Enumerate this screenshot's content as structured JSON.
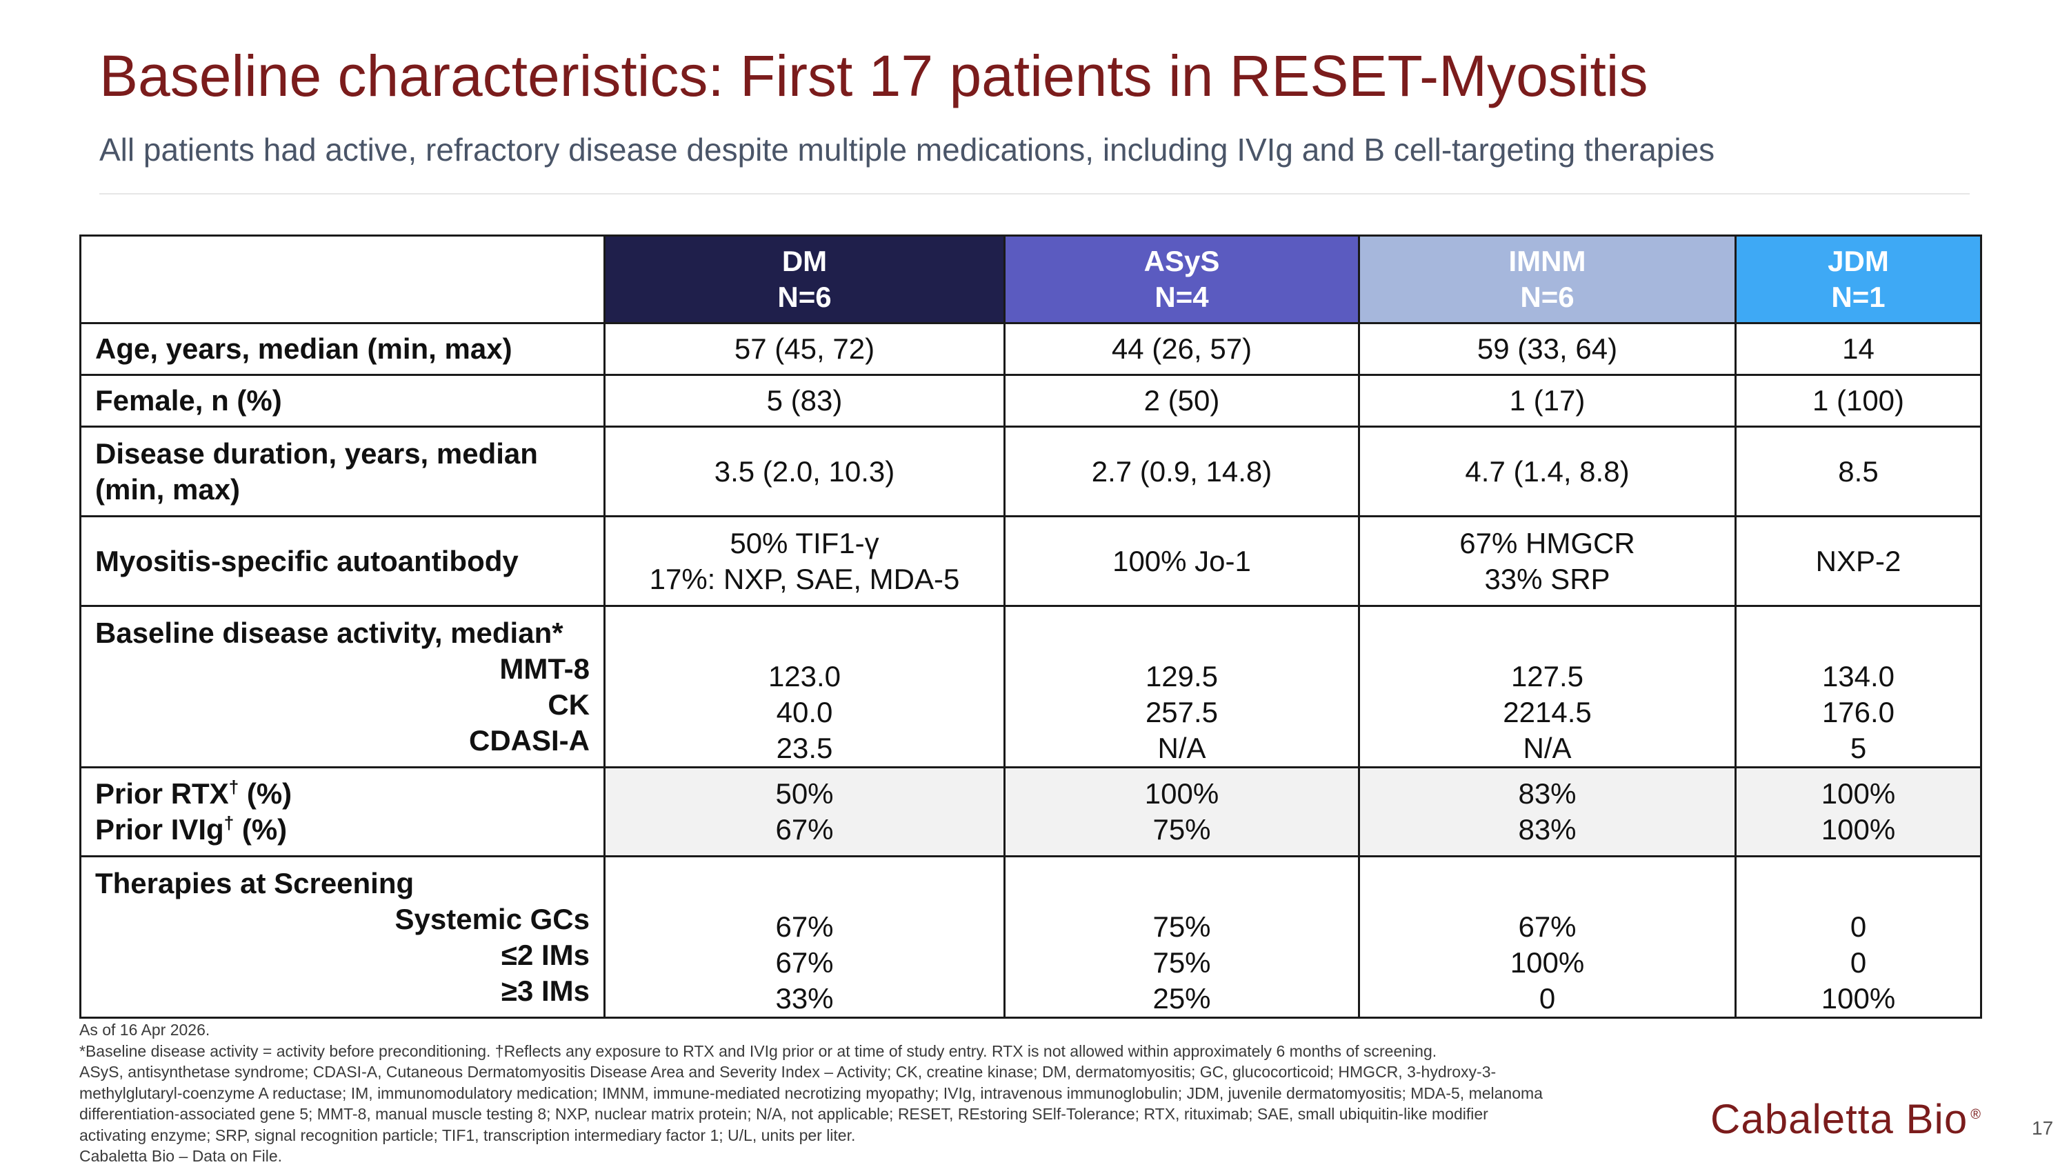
{
  "slide": {
    "title": "Baseline characteristics: First 17 patients in RESET-Myositis",
    "subtitle": "All patients had active, refractory disease despite multiple medications, including IVIg and B cell-targeting therapies",
    "page_number": "17",
    "logo_text": "Cabaletta Bio",
    "logo_mark": "®"
  },
  "colors": {
    "title": "#7b1c1c",
    "dm": "#1f1f4b",
    "asys": "#5b5bc0",
    "imnm": "#a6b7dc",
    "jdm": "#3ea9f5"
  },
  "table": {
    "columns": [
      {
        "name": "DM",
        "n": "N=6"
      },
      {
        "name": "ASyS",
        "n": "N=4"
      },
      {
        "name": "IMNM",
        "n": "N=6"
      },
      {
        "name": "JDM",
        "n": "N=1"
      }
    ],
    "age": {
      "label": "Age, years, median (min, max)",
      "values": [
        "57 (45, 72)",
        "44 (26, 57)",
        "59 (33, 64)",
        "14"
      ]
    },
    "female": {
      "label": "Female, n (%)",
      "values": [
        "5 (83)",
        "2 (50)",
        "1 (17)",
        "1 (100)"
      ]
    },
    "duration": {
      "label_line1": "Disease duration, years, median",
      "label_line2": "(min, max)",
      "values": [
        "3.5 (2.0, 10.3)",
        "2.7 (0.9, 14.8)",
        "4.7 (1.4, 8.8)",
        "8.5"
      ]
    },
    "autoantibody": {
      "label": "Myositis-specific autoantibody",
      "values": [
        {
          "line1": "50% TIF1-γ",
          "line2": "17%: NXP, SAE, MDA-5"
        },
        {
          "line1": "100% Jo-1",
          "line2": ""
        },
        {
          "line1": "67% HMGCR",
          "line2": "33% SRP"
        },
        {
          "line1": "NXP-2",
          "line2": ""
        }
      ]
    },
    "activity": {
      "label": "Baseline disease activity, median*",
      "sub_labels": [
        "MMT-8",
        "CK",
        "CDASI-A"
      ],
      "values": [
        [
          "123.0",
          "40.0",
          "23.5"
        ],
        [
          "129.5",
          "257.5",
          "N/A"
        ],
        [
          "127.5",
          "2214.5",
          "N/A"
        ],
        [
          "134.0",
          "176.0",
          "5"
        ]
      ]
    },
    "prior": {
      "rtx_label": "Prior RTX",
      "ivig_label": "Prior IVIg",
      "dagger": "†",
      "pct_suffix": " (%)",
      "values": [
        [
          "50%",
          "67%"
        ],
        [
          "100%",
          "75%"
        ],
        [
          "83%",
          "83%"
        ],
        [
          "100%",
          "100%"
        ]
      ]
    },
    "therapies": {
      "label": "Therapies at Screening",
      "sub_labels": [
        "Systemic GCs",
        "≤2 IMs",
        "≥3 IMs"
      ],
      "values": [
        [
          "67%",
          "67%",
          "33%"
        ],
        [
          "75%",
          "75%",
          "25%"
        ],
        [
          "67%",
          "100%",
          "0"
        ],
        [
          "0",
          "0",
          "100%"
        ]
      ]
    }
  },
  "footnotes": [
    "As of 16 Apr 2026.",
    "*Baseline disease activity = activity before preconditioning. †Reflects any exposure to RTX and IVIg prior or at time of study entry. RTX is not allowed within approximately 6 months of screening.",
    "ASyS, antisynthetase syndrome; CDASI-A, Cutaneous Dermatomyositis Disease Area and Severity Index – Activity; CK, creatine kinase; DM, dermatomyositis; GC, glucocorticoid; HMGCR, 3-hydroxy-3-",
    "methylglutaryl-coenzyme A reductase; IM, immunomodulatory medication; IMNM, immune-mediated necrotizing myopathy; IVIg, intravenous immunoglobulin; JDM, juvenile dermatomyositis; MDA-5, melanoma",
    "differentiation-associated gene 5;  MMT-8, manual muscle testing 8; NXP, nuclear matrix protein; N/A, not applicable; RESET, REstoring SElf-Tolerance; RTX, rituximab; SAE, small ubiquitin-like modifier",
    "activating enzyme; SRP, signal recognition particle; TIF1, transcription intermediary factor 1; U/L, units per liter.",
    "Cabaletta Bio – Data on File."
  ]
}
